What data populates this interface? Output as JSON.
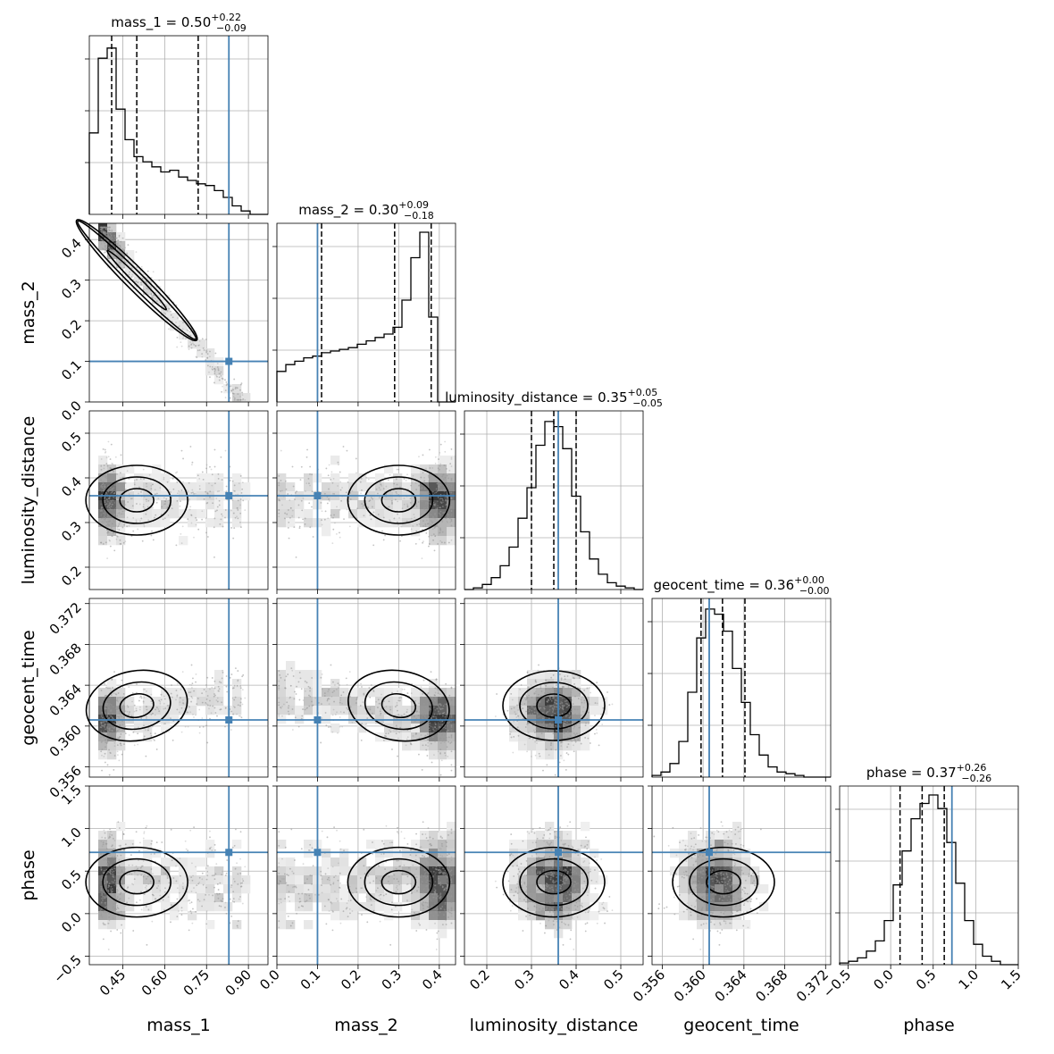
{
  "chart_data": {
    "type": "corner",
    "parameters": [
      {
        "name": "mass_1",
        "label": "mass_1",
        "range": [
          0.33,
          0.97
        ],
        "ticks": [
          0.45,
          0.6,
          0.75,
          0.9
        ],
        "tick_labels": [
          "0.45",
          "0.60",
          "0.75",
          "0.90"
        ],
        "truth": 0.83,
        "median": 0.5,
        "quantiles": [
          0.41,
          0.5,
          0.72
        ],
        "title_value": "0.50",
        "title_plus": "+0.22",
        "title_minus": "−0.09"
      },
      {
        "name": "mass_2",
        "label": "mass_2",
        "range": [
          0.0,
          0.44
        ],
        "ticks": [
          0.0,
          0.1,
          0.2,
          0.3,
          0.4
        ],
        "tick_labels": [
          "0.0",
          "0.1",
          "0.2",
          "0.3",
          "0.4"
        ],
        "truth": 0.1,
        "median": 0.3,
        "quantiles": [
          0.11,
          0.29,
          0.38
        ],
        "title_value": "0.30",
        "title_plus": "+0.09",
        "title_minus": "−0.18"
      },
      {
        "name": "luminosity_distance",
        "label": "luminosity_distance",
        "range": [
          0.15,
          0.55
        ],
        "ticks": [
          0.2,
          0.3,
          0.4,
          0.5
        ],
        "tick_labels": [
          "0.2",
          "0.3",
          "0.4",
          "0.5"
        ],
        "truth": 0.36,
        "median": 0.35,
        "quantiles": [
          0.3,
          0.35,
          0.4
        ],
        "title_value": "0.35",
        "title_plus": "+0.05",
        "title_minus": "−0.05"
      },
      {
        "name": "geocent_time",
        "label": "geocent_time",
        "range": [
          0.355,
          0.3725
        ],
        "ticks": [
          0.356,
          0.36,
          0.364,
          0.368,
          0.372
        ],
        "tick_labels": [
          "0.356",
          "0.360",
          "0.364",
          "0.368",
          "0.372"
        ],
        "truth": 0.3606,
        "median": 0.362,
        "quantiles": [
          0.3598,
          0.3619,
          0.3641
        ],
        "title_value": "0.36",
        "title_plus": "+0.00",
        "title_minus": "−0.00"
      },
      {
        "name": "phase",
        "label": "phase",
        "range": [
          -0.6,
          1.5
        ],
        "ticks": [
          -0.5,
          0.0,
          0.5,
          1.0,
          1.5
        ],
        "tick_labels": [
          "−0.5",
          "0.0",
          "0.5",
          "1.0",
          "1.5"
        ],
        "truth": 0.72,
        "median": 0.37,
        "quantiles": [
          0.11,
          0.37,
          0.63
        ],
        "title_value": "0.37",
        "title_plus": "+0.26",
        "title_minus": "−0.26"
      }
    ],
    "histograms": [
      [
        0.48,
        0.92,
        0.98,
        0.62,
        0.44,
        0.34,
        0.31,
        0.28,
        0.25,
        0.26,
        0.22,
        0.2,
        0.18,
        0.17,
        0.14,
        0.1,
        0.05,
        0.02,
        0.0,
        0.0
      ],
      [
        0.18,
        0.22,
        0.24,
        0.26,
        0.27,
        0.29,
        0.3,
        0.31,
        0.32,
        0.34,
        0.36,
        0.38,
        0.4,
        0.44,
        0.6,
        0.85,
        1.0,
        0.5,
        0.0,
        0.0
      ],
      [
        0.0,
        0.01,
        0.03,
        0.07,
        0.14,
        0.25,
        0.42,
        0.6,
        0.85,
        0.99,
        0.96,
        0.83,
        0.55,
        0.34,
        0.18,
        0.09,
        0.04,
        0.02,
        0.01,
        0.0
      ],
      [
        0.01,
        0.03,
        0.08,
        0.21,
        0.5,
        0.82,
        0.99,
        0.96,
        0.86,
        0.64,
        0.44,
        0.25,
        0.13,
        0.06,
        0.03,
        0.02,
        0.01,
        0.0,
        0.0,
        0.0
      ],
      [
        0.01,
        0.02,
        0.04,
        0.08,
        0.14,
        0.26,
        0.47,
        0.67,
        0.86,
        0.95,
        1.0,
        0.92,
        0.72,
        0.48,
        0.26,
        0.12,
        0.05,
        0.02,
        0.0,
        0.0
      ]
    ],
    "correlations": [
      [
        1,
        -0.97,
        0.0,
        0.3,
        0.0
      ],
      [
        -0.97,
        1,
        0.0,
        -0.3,
        0.0
      ],
      [
        0.0,
        0.0,
        1,
        0.0,
        0.0
      ],
      [
        0.3,
        -0.3,
        0.0,
        1,
        0.0
      ],
      [
        0.0,
        0.0,
        0.0,
        0.0,
        1
      ]
    ],
    "grid": true,
    "colors": {
      "truth": "#4682b4",
      "samples": "#808080",
      "contour": "#000000"
    }
  }
}
